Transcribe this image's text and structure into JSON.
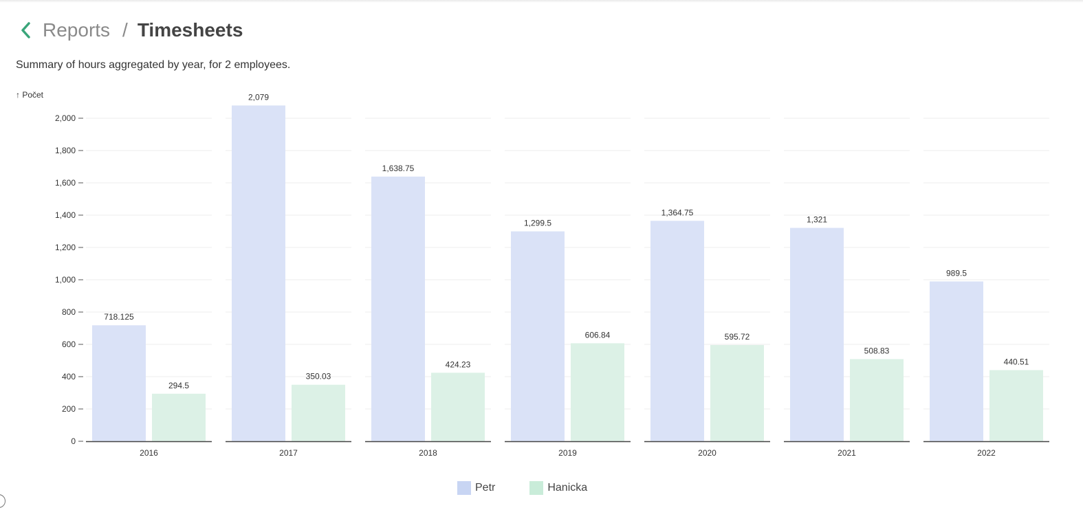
{
  "header": {
    "back_icon": "chevron-left-icon",
    "parent": "Reports",
    "separator": "/",
    "current": "Timesheets"
  },
  "summary": "Summary of hours aggregated by year, for 2 employees.",
  "colors": {
    "accent": "#3aa57a",
    "petr": "#dae2f7",
    "hanicka": "#dcf1e6",
    "petr_legend": "#c8d5f3",
    "hanicka_legend": "#c9ecd9"
  },
  "chart_data": {
    "type": "bar",
    "ylabel": "↑ Počet",
    "ylim": [
      0,
      2000
    ],
    "yticks": [
      "0",
      "200",
      "400",
      "600",
      "800",
      "1,000",
      "1,200",
      "1,400",
      "1,600",
      "1,800",
      "2,000"
    ],
    "categories": [
      "2016",
      "2017",
      "2018",
      "2019",
      "2020",
      "2021",
      "2022"
    ],
    "series": [
      {
        "name": "Petr",
        "values": [
          718.125,
          2079,
          1638.75,
          1299.5,
          1364.75,
          1321,
          989.5
        ],
        "labels": [
          "718.125",
          "2,079",
          "1,638.75",
          "1,299.5",
          "1,364.75",
          "1,321",
          "989.5"
        ]
      },
      {
        "name": "Hanicka",
        "values": [
          294.5,
          350.03,
          424.23,
          606.84,
          595.72,
          508.83,
          440.51
        ],
        "labels": [
          "294.5",
          "350.03",
          "424.23",
          "606.84",
          "595.72",
          "508.83",
          "440.51"
        ]
      }
    ],
    "grid": true,
    "legend": "bottom-center"
  }
}
